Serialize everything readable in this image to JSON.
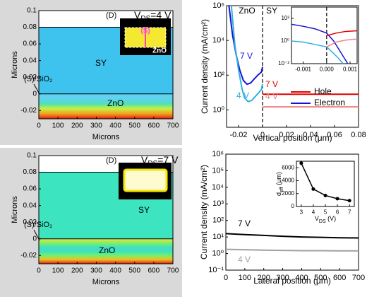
{
  "chart_data": [
    {
      "type": "contour",
      "xlabel": "Microns",
      "ylabel": "Microns",
      "xlim": [
        0,
        700
      ],
      "xticks": [
        0,
        100,
        200,
        300,
        400,
        500,
        600,
        700
      ],
      "ylim": [
        -0.03,
        0.1
      ],
      "yticks": [
        -0.02,
        0,
        0.02,
        0.04,
        0.06,
        0.08,
        0.1
      ],
      "layers": [
        {
          "ylim": [
            0,
            0.08
          ],
          "colors": [
            "#3ec3ef",
            "#3ec3ef"
          ]
        },
        {
          "ylim": [
            -0.03,
            0
          ],
          "colors": [
            "#5fd3ef",
            "#5fd3ef",
            "#4fe0b8",
            "#c8f040",
            "#f0a020",
            "#e02010"
          ]
        }
      ],
      "panel_label": "(D)",
      "bias": {
        "main": "V",
        "sub": "DS",
        "rest": "=4 V"
      },
      "labels": {
        "sy": "SY",
        "zno": "ZnO",
        "interface": "(S)/SiO₂",
        "inset_source": "(S)",
        "inset_zno": "ZnO"
      }
    },
    {
      "type": "line",
      "xlabel": "Vertical position (μm)",
      "ylabel": "Current density (mA/cm²)",
      "xlim": [
        -0.03,
        0.08
      ],
      "xticks": [
        -0.02,
        0,
        0.02,
        0.04,
        0.06,
        0.08
      ],
      "ylim": [
        0.1,
        1000000
      ],
      "yscale": "log",
      "yticks": [
        {
          "value": 1,
          "label": "10⁰"
        },
        {
          "value": 100,
          "label": "10²"
        },
        {
          "value": 10000,
          "label": "10⁴"
        },
        {
          "value": 1000000,
          "label": "10⁶"
        }
      ],
      "divider_x": 0,
      "labels": {
        "left": "ZnO",
        "right": "SY"
      },
      "series": [
        {
          "name": "7 V",
          "color": "#1414d2",
          "x": [
            -0.028,
            -0.025,
            -0.022,
            -0.019,
            -0.016,
            -0.013,
            -0.01,
            -0.007,
            -0.004,
            -0.001,
            0
          ],
          "values": [
            1000000,
            20000,
            1500,
            200,
            50,
            30,
            35,
            60,
            100,
            150,
            300
          ]
        },
        {
          "name": "4 V",
          "color": "#30b0e0",
          "x": [
            -0.026,
            -0.023,
            -0.02,
            -0.017,
            -0.015,
            -0.012,
            -0.009,
            -0.006,
            -0.003,
            -0.001,
            0
          ],
          "values": [
            1000000,
            5000,
            200,
            15,
            5,
            3,
            3.5,
            6,
            10,
            15,
            30
          ]
        },
        {
          "name": "7 V",
          "color": "#e00000",
          "x": [
            0,
            0.08
          ],
          "values": [
            8,
            8
          ]
        },
        {
          "name": "4 V",
          "color": "#f08080",
          "x": [
            0,
            0.08
          ],
          "values": [
            1.5,
            1.5
          ]
        }
      ],
      "legend": [
        {
          "name": "Hole",
          "color": "#e00000"
        },
        {
          "name": "Electron",
          "color": "#1414d2"
        }
      ],
      "inset": {
        "type": "line",
        "xlim": [
          -0.0015,
          0.0013
        ],
        "xticks": [
          -0.001,
          {
            "value": 0,
            "label": "0.000"
          },
          0.001
        ],
        "ylim": [
          0.01,
          1000
        ],
        "yscale": "log",
        "yticks": [
          {
            "value": 0.01,
            "label": "10⁻²"
          },
          {
            "value": 1,
            "label": "10⁰"
          },
          {
            "value": 100,
            "label": "10²"
          }
        ],
        "divider_x": 0,
        "series": [
          {
            "color": "#1414d2",
            "x": [
              -0.0015,
              -0.001,
              -0.0005,
              0,
              0.0003,
              0.0006,
              0.0009
            ],
            "values": [
              30,
              20,
              12,
              5,
              1,
              0.1,
              0.01
            ]
          },
          {
            "color": "#30b0e0",
            "x": [
              -0.0015,
              -0.001,
              -0.0005,
              0,
              0.0003,
              0.0005,
              0.0007
            ],
            "values": [
              1,
              0.8,
              0.5,
              0.3,
              0.08,
              0.03,
              0.01
            ]
          },
          {
            "color": "#e00000",
            "x": [
              0,
              0.0004,
              0.0008,
              0.0013
            ],
            "values": [
              3,
              5,
              7,
              8
            ]
          },
          {
            "color": "#f08080",
            "x": [
              0,
              0.0004,
              0.0008,
              0.0013
            ],
            "values": [
              0.3,
              0.8,
              1.2,
              1.5
            ]
          }
        ]
      }
    },
    {
      "type": "contour",
      "xlabel": "Microns",
      "ylabel": "Microns",
      "xlim": [
        0,
        700
      ],
      "xticks": [
        0,
        100,
        200,
        300,
        400,
        500,
        600,
        700
      ],
      "ylim": [
        -0.03,
        0.1
      ],
      "yticks": [
        -0.02,
        0,
        0.02,
        0.04,
        0.06,
        0.08,
        0.1
      ],
      "layers": [
        {
          "ylim": [
            0,
            0.08
          ],
          "colors": [
            "#3de4c0",
            "#3de4c0"
          ]
        },
        {
          "ylim": [
            -0.03,
            0
          ],
          "colors": [
            "#f0e040",
            "#80f060",
            "#40e0c0",
            "#40e0c0",
            "#70f070",
            "#f0c020",
            "#e02010"
          ]
        }
      ],
      "panel_label": "(D)",
      "bias": {
        "main": "V",
        "sub": "DS",
        "rest": "=7 V"
      },
      "labels": {
        "sy": "SY",
        "zno": "ZnO",
        "interface": "(S)/SiO₂"
      }
    },
    {
      "type": "line",
      "xlabel": "Lateral position (μm)",
      "ylabel": "Current density (mA/cm²)",
      "xlim": [
        0,
        700
      ],
      "xticks": [
        0,
        100,
        200,
        300,
        400,
        500,
        600,
        700
      ],
      "ylim": [
        0.1,
        1000000
      ],
      "yscale": "log",
      "yticks": [
        {
          "value": 0.1,
          "label": "10⁻¹"
        },
        {
          "value": 1,
          "label": "10⁰"
        },
        {
          "value": 10,
          "label": "10¹"
        },
        {
          "value": 100,
          "label": "10²"
        },
        {
          "value": 1000,
          "label": "10³"
        },
        {
          "value": 10000,
          "label": "10⁴"
        },
        {
          "value": 100000,
          "label": "10⁵"
        },
        {
          "value": 1000000,
          "label": "10⁶"
        }
      ],
      "series": [
        {
          "name": "7 V",
          "color": "#000000",
          "x": [
            0,
            100,
            200,
            300,
            400,
            500,
            600,
            700
          ],
          "values": [
            16,
            14,
            12.5,
            11,
            10,
            9.5,
            9,
            8.7
          ]
        },
        {
          "name": "4 V",
          "color": "#a0a0a0",
          "x": [
            0,
            100,
            200,
            300,
            400,
            500,
            600,
            700
          ],
          "values": [
            1.8,
            1.7,
            1.6,
            1.55,
            1.5,
            1.5,
            1.45,
            1.45
          ]
        }
      ],
      "inset": {
        "type": "line",
        "xlabel": {
          "main": "V",
          "sub": "DS",
          "rest": " (V)"
        },
        "ylabel": {
          "main": "d",
          "sub": "eff",
          "rest": " (μm)"
        },
        "xlim": [
          2.6,
          7.4
        ],
        "xticks": [
          3,
          4,
          5,
          6,
          7
        ],
        "ylim": [
          0,
          7000
        ],
        "yticks": [
          0,
          2000,
          4000,
          6000
        ],
        "markers": true,
        "series": [
          {
            "color": "#000000",
            "x": [
              3,
              4,
              5,
              6,
              7
            ],
            "values": [
              6700,
              2700,
              1700,
              1200,
              900
            ]
          }
        ]
      }
    }
  ]
}
